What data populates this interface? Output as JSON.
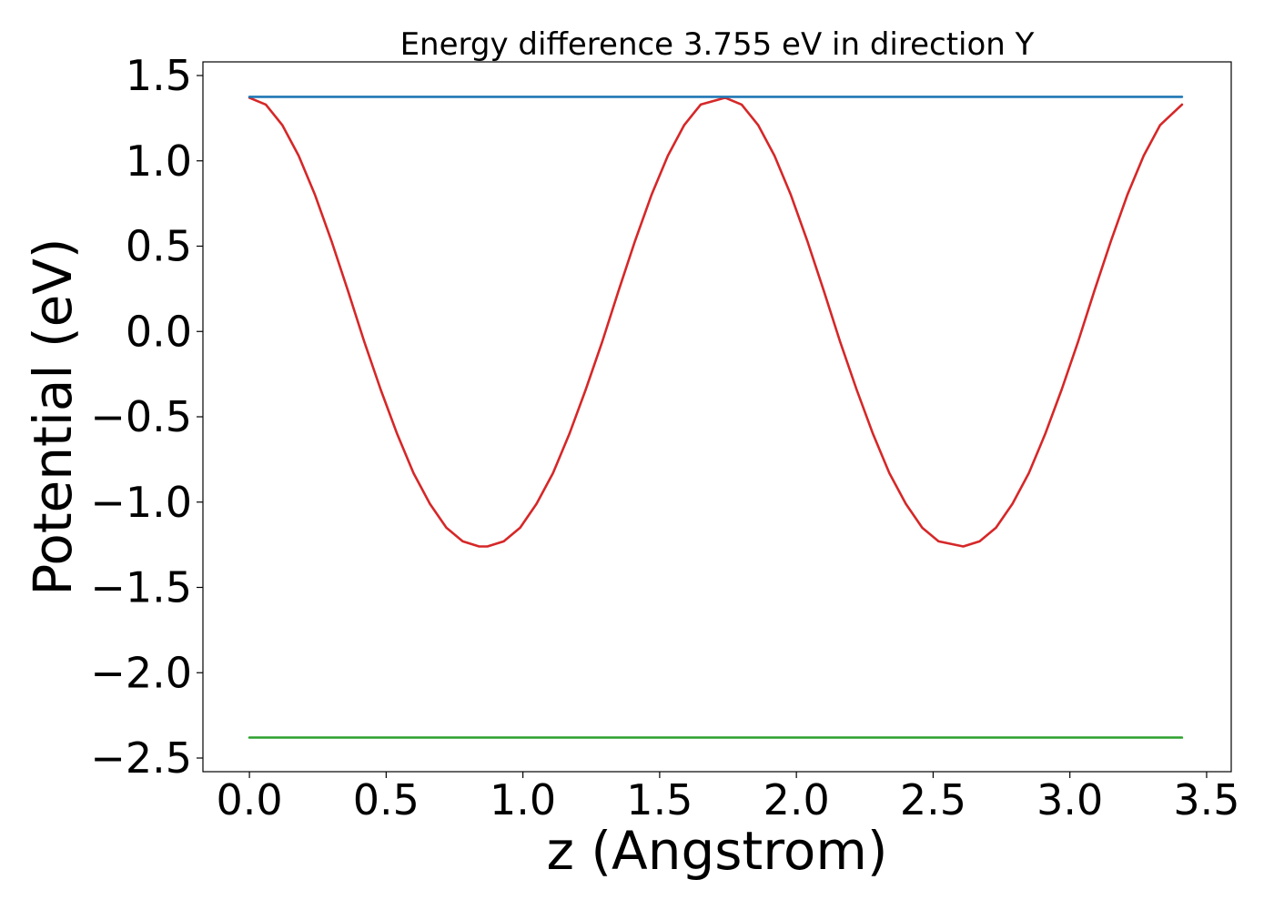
{
  "chart_data": {
    "type": "line",
    "title": "Energy difference 3.755 eV in direction Y",
    "xlabel": "z (Angstrom)",
    "ylabel": "Potential (eV)",
    "xlim": [
      -0.17,
      3.59
    ],
    "ylim": [
      -2.58,
      1.58
    ],
    "xticks": [
      0.0,
      0.5,
      1.0,
      1.5,
      2.0,
      2.5,
      3.0,
      3.5
    ],
    "xtick_labels": [
      "0.0",
      "0.5",
      "1.0",
      "1.5",
      "2.0",
      "2.5",
      "3.0",
      "3.5"
    ],
    "yticks": [
      1.5,
      1.0,
      0.5,
      0.0,
      -0.5,
      -1.0,
      -1.5,
      -2.0,
      -2.5
    ],
    "ytick_labels": [
      "1.5",
      "1.0",
      "0.5",
      "0.0",
      "−0.5",
      "−1.0",
      "−1.5",
      "−2.0",
      "−2.5"
    ],
    "grid": false,
    "series": [
      {
        "color": "#d62728",
        "x": [
          0.0,
          0.06,
          0.12,
          0.18,
          0.24,
          0.3,
          0.36,
          0.42,
          0.48,
          0.54,
          0.6,
          0.66,
          0.72,
          0.78,
          0.84,
          0.87,
          0.93,
          0.99,
          1.05,
          1.11,
          1.17,
          1.23,
          1.29,
          1.35,
          1.41,
          1.47,
          1.53,
          1.59,
          1.65,
          1.74,
          1.8,
          1.86,
          1.92,
          1.98,
          2.04,
          2.1,
          2.16,
          2.22,
          2.28,
          2.34,
          2.4,
          2.46,
          2.52,
          2.61,
          2.67,
          2.73,
          2.79,
          2.85,
          2.91,
          2.97,
          3.03,
          3.09,
          3.15,
          3.21,
          3.27,
          3.33,
          3.41
        ],
        "values": [
          1.37,
          1.33,
          1.21,
          1.03,
          0.8,
          0.53,
          0.24,
          -0.06,
          -0.34,
          -0.6,
          -0.83,
          -1.01,
          -1.15,
          -1.23,
          -1.26,
          -1.26,
          -1.23,
          -1.15,
          -1.01,
          -0.83,
          -0.6,
          -0.34,
          -0.06,
          0.24,
          0.53,
          0.8,
          1.03,
          1.21,
          1.33,
          1.37,
          1.33,
          1.21,
          1.03,
          0.8,
          0.53,
          0.24,
          -0.06,
          -0.34,
          -0.6,
          -0.83,
          -1.01,
          -1.15,
          -1.23,
          -1.26,
          -1.23,
          -1.15,
          -1.01,
          -0.83,
          -0.6,
          -0.34,
          -0.06,
          0.24,
          0.53,
          0.8,
          1.03,
          1.21,
          1.33
        ]
      },
      {
        "color": "#1f77b4",
        "x": [
          0.0,
          3.41
        ],
        "values": [
          1.375,
          1.375
        ]
      },
      {
        "color": "#2ca02c",
        "x": [
          0.0,
          3.41
        ],
        "values": [
          -2.38,
          -2.38
        ]
      }
    ]
  }
}
